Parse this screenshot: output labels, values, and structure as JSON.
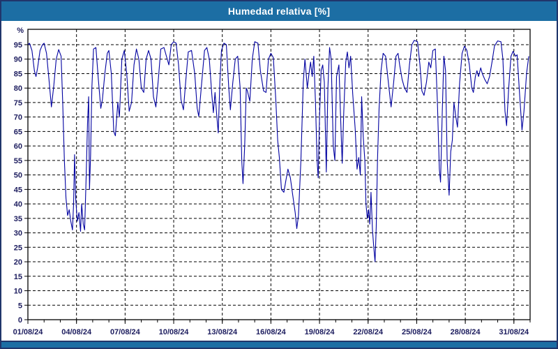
{
  "header": {
    "title": "Humedad relativa [%]"
  },
  "colors": {
    "titlebar_bg": "#1c6ea4",
    "bottombar_bg": "#1c6ea4",
    "frame_border": "#21356b",
    "plot_bg": "#ffffff",
    "axis": "#000000",
    "grid": "#000000",
    "tick_label": "#1c1c5e",
    "line": "#0101a0"
  },
  "chart_data": {
    "type": "line",
    "title": "Humedad relativa [%]",
    "ylabel": "%",
    "x_axis_unit": "date",
    "x_tick_labels": [
      "01/08/24",
      "04/08/24",
      "07/08/24",
      "10/08/24",
      "13/08/24",
      "16/08/24",
      "19/08/24",
      "22/08/24",
      "25/08/24",
      "28/08/24",
      "31/08/24"
    ],
    "x_tick_days": [
      1,
      4,
      7,
      10,
      13,
      16,
      19,
      22,
      25,
      28,
      31
    ],
    "x_minor_tick_step_days": 1,
    "y_ticks": [
      0,
      5,
      10,
      15,
      20,
      25,
      30,
      35,
      40,
      45,
      50,
      55,
      60,
      65,
      70,
      75,
      80,
      85,
      90,
      95
    ],
    "xlim": [
      1,
      32
    ],
    "ylim": [
      0,
      100.3
    ],
    "grid": "dashed",
    "legend": "none",
    "series": [
      {
        "name": "Humedad relativa",
        "color": "#0101a0",
        "points": [
          [
            1.0,
            95
          ],
          [
            1.1,
            95.5
          ],
          [
            1.25,
            93
          ],
          [
            1.4,
            86
          ],
          [
            1.5,
            84
          ],
          [
            1.6,
            87
          ],
          [
            1.75,
            93
          ],
          [
            1.9,
            95
          ],
          [
            2.0,
            95.5
          ],
          [
            2.15,
            92
          ],
          [
            2.3,
            83
          ],
          [
            2.45,
            73.5
          ],
          [
            2.6,
            81
          ],
          [
            2.75,
            90
          ],
          [
            2.9,
            93.3
          ],
          [
            3.05,
            91
          ],
          [
            3.15,
            75
          ],
          [
            3.25,
            55
          ],
          [
            3.35,
            42
          ],
          [
            3.45,
            36
          ],
          [
            3.55,
            38
          ],
          [
            3.65,
            34
          ],
          [
            3.75,
            31
          ],
          [
            3.82,
            40
          ],
          [
            3.88,
            57
          ],
          [
            3.95,
            42
          ],
          [
            4.05,
            34
          ],
          [
            4.15,
            37
          ],
          [
            4.25,
            30.5
          ],
          [
            4.32,
            40
          ],
          [
            4.42,
            33
          ],
          [
            4.5,
            31
          ],
          [
            4.6,
            50
          ],
          [
            4.68,
            68
          ],
          [
            4.75,
            77
          ],
          [
            4.8,
            45
          ],
          [
            4.87,
            57
          ],
          [
            4.95,
            80
          ],
          [
            5.05,
            93.5
          ],
          [
            5.2,
            94
          ],
          [
            5.35,
            83
          ],
          [
            5.5,
            73
          ],
          [
            5.6,
            76
          ],
          [
            5.75,
            85
          ],
          [
            5.9,
            92
          ],
          [
            6.0,
            93
          ],
          [
            6.15,
            85
          ],
          [
            6.3,
            65
          ],
          [
            6.4,
            63.5
          ],
          [
            6.55,
            75
          ],
          [
            6.65,
            70
          ],
          [
            6.8,
            90
          ],
          [
            6.95,
            93
          ],
          [
            7.1,
            85
          ],
          [
            7.25,
            72
          ],
          [
            7.4,
            75
          ],
          [
            7.55,
            88
          ],
          [
            7.7,
            93.5
          ],
          [
            7.85,
            90
          ],
          [
            8.0,
            80
          ],
          [
            8.15,
            78.5
          ],
          [
            8.3,
            90
          ],
          [
            8.45,
            93
          ],
          [
            8.6,
            90
          ],
          [
            8.75,
            77
          ],
          [
            8.9,
            73.5
          ],
          [
            9.05,
            83
          ],
          [
            9.2,
            93.5
          ],
          [
            9.4,
            94
          ],
          [
            9.55,
            91
          ],
          [
            9.7,
            88
          ],
          [
            9.85,
            95
          ],
          [
            10.0,
            96
          ],
          [
            10.15,
            95.5
          ],
          [
            10.3,
            88
          ],
          [
            10.45,
            76
          ],
          [
            10.6,
            72.5
          ],
          [
            10.75,
            83
          ],
          [
            10.9,
            92.5
          ],
          [
            11.1,
            93
          ],
          [
            11.3,
            85
          ],
          [
            11.45,
            73
          ],
          [
            11.55,
            70.2
          ],
          [
            11.7,
            80
          ],
          [
            11.9,
            93
          ],
          [
            12.05,
            94
          ],
          [
            12.2,
            90
          ],
          [
            12.35,
            78
          ],
          [
            12.45,
            71.5
          ],
          [
            12.55,
            78.5
          ],
          [
            12.65,
            71
          ],
          [
            12.75,
            64.5
          ],
          [
            12.85,
            82
          ],
          [
            12.95,
            93
          ],
          [
            13.1,
            95.5
          ],
          [
            13.25,
            95
          ],
          [
            13.4,
            80
          ],
          [
            13.5,
            72.5
          ],
          [
            13.65,
            82
          ],
          [
            13.8,
            90
          ],
          [
            13.95,
            91
          ],
          [
            14.1,
            80
          ],
          [
            14.2,
            55
          ],
          [
            14.28,
            47
          ],
          [
            14.38,
            60
          ],
          [
            14.48,
            80
          ],
          [
            14.55,
            79
          ],
          [
            14.7,
            75.5
          ],
          [
            14.85,
            90
          ],
          [
            15.0,
            96
          ],
          [
            15.2,
            95.5
          ],
          [
            15.35,
            86
          ],
          [
            15.55,
            79
          ],
          [
            15.7,
            78.5
          ],
          [
            15.85,
            90
          ],
          [
            16.0,
            92
          ],
          [
            16.15,
            90.5
          ],
          [
            16.3,
            76
          ],
          [
            16.42,
            62
          ],
          [
            16.52,
            56
          ],
          [
            16.65,
            45
          ],
          [
            16.8,
            44
          ],
          [
            16.92,
            48
          ],
          [
            17.05,
            52
          ],
          [
            17.2,
            49
          ],
          [
            17.35,
            43
          ],
          [
            17.5,
            37
          ],
          [
            17.6,
            31.5
          ],
          [
            17.7,
            36
          ],
          [
            17.85,
            55
          ],
          [
            18.0,
            82
          ],
          [
            18.1,
            90
          ],
          [
            18.25,
            80
          ],
          [
            18.35,
            85
          ],
          [
            18.45,
            89
          ],
          [
            18.55,
            84
          ],
          [
            18.65,
            91
          ],
          [
            18.75,
            75
          ],
          [
            18.85,
            55
          ],
          [
            18.92,
            49
          ],
          [
            19.0,
            70
          ],
          [
            19.1,
            86
          ],
          [
            19.2,
            88
          ],
          [
            19.3,
            82
          ],
          [
            19.42,
            51
          ],
          [
            19.52,
            80
          ],
          [
            19.62,
            94
          ],
          [
            19.72,
            90
          ],
          [
            19.85,
            60
          ],
          [
            19.95,
            55
          ],
          [
            20.05,
            84
          ],
          [
            20.2,
            88
          ],
          [
            20.3,
            70
          ],
          [
            20.4,
            54
          ],
          [
            20.5,
            72
          ],
          [
            20.62,
            89
          ],
          [
            20.72,
            92.5
          ],
          [
            20.82,
            87
          ],
          [
            20.92,
            91
          ],
          [
            21.05,
            78
          ],
          [
            21.2,
            66
          ],
          [
            21.32,
            52
          ],
          [
            21.42,
            56
          ],
          [
            21.52,
            50
          ],
          [
            21.6,
            77
          ],
          [
            21.7,
            63
          ],
          [
            21.8,
            55
          ],
          [
            21.87,
            40
          ],
          [
            21.95,
            35
          ],
          [
            22.03,
            38
          ],
          [
            22.1,
            33
          ],
          [
            22.18,
            44
          ],
          [
            22.27,
            31
          ],
          [
            22.35,
            25
          ],
          [
            22.43,
            20
          ],
          [
            22.5,
            32
          ],
          [
            22.58,
            55
          ],
          [
            22.68,
            73
          ],
          [
            22.8,
            86
          ],
          [
            22.93,
            92
          ],
          [
            23.08,
            91
          ],
          [
            23.25,
            82
          ],
          [
            23.42,
            73.5
          ],
          [
            23.58,
            82
          ],
          [
            23.72,
            91
          ],
          [
            23.85,
            92
          ],
          [
            23.95,
            88
          ],
          [
            24.1,
            83
          ],
          [
            24.25,
            80
          ],
          [
            24.4,
            78.5
          ],
          [
            24.55,
            88
          ],
          [
            24.7,
            95
          ],
          [
            24.85,
            96.5
          ],
          [
            25.05,
            96
          ],
          [
            25.2,
            88
          ],
          [
            25.32,
            79
          ],
          [
            25.45,
            77.5
          ],
          [
            25.6,
            82
          ],
          [
            25.75,
            89
          ],
          [
            25.87,
            87
          ],
          [
            26.0,
            93
          ],
          [
            26.15,
            93.5
          ],
          [
            26.28,
            75
          ],
          [
            26.4,
            52
          ],
          [
            26.47,
            47.5
          ],
          [
            26.58,
            72
          ],
          [
            26.68,
            91
          ],
          [
            26.78,
            86
          ],
          [
            26.88,
            55
          ],
          [
            27.0,
            43
          ],
          [
            27.1,
            58
          ],
          [
            27.2,
            62
          ],
          [
            27.3,
            75
          ],
          [
            27.42,
            70
          ],
          [
            27.52,
            66.5
          ],
          [
            27.65,
            82
          ],
          [
            27.8,
            92
          ],
          [
            27.95,
            94.5
          ],
          [
            28.1,
            93
          ],
          [
            28.25,
            88
          ],
          [
            28.4,
            80
          ],
          [
            28.5,
            78.5
          ],
          [
            28.62,
            84
          ],
          [
            28.72,
            86
          ],
          [
            28.82,
            84
          ],
          [
            28.95,
            87
          ],
          [
            29.05,
            85
          ],
          [
            29.2,
            83
          ],
          [
            29.35,
            81.5
          ],
          [
            29.5,
            84
          ],
          [
            29.65,
            89
          ],
          [
            29.8,
            94.5
          ],
          [
            30.0,
            96.3
          ],
          [
            30.2,
            96
          ],
          [
            30.32,
            90
          ],
          [
            30.45,
            72
          ],
          [
            30.55,
            67
          ],
          [
            30.68,
            80
          ],
          [
            30.82,
            91
          ],
          [
            30.95,
            92.7
          ],
          [
            31.1,
            91
          ],
          [
            31.2,
            91.5
          ],
          [
            31.35,
            78
          ],
          [
            31.5,
            65.5
          ],
          [
            31.62,
            72
          ],
          [
            31.78,
            85
          ],
          [
            31.92,
            91
          ]
        ]
      }
    ]
  }
}
